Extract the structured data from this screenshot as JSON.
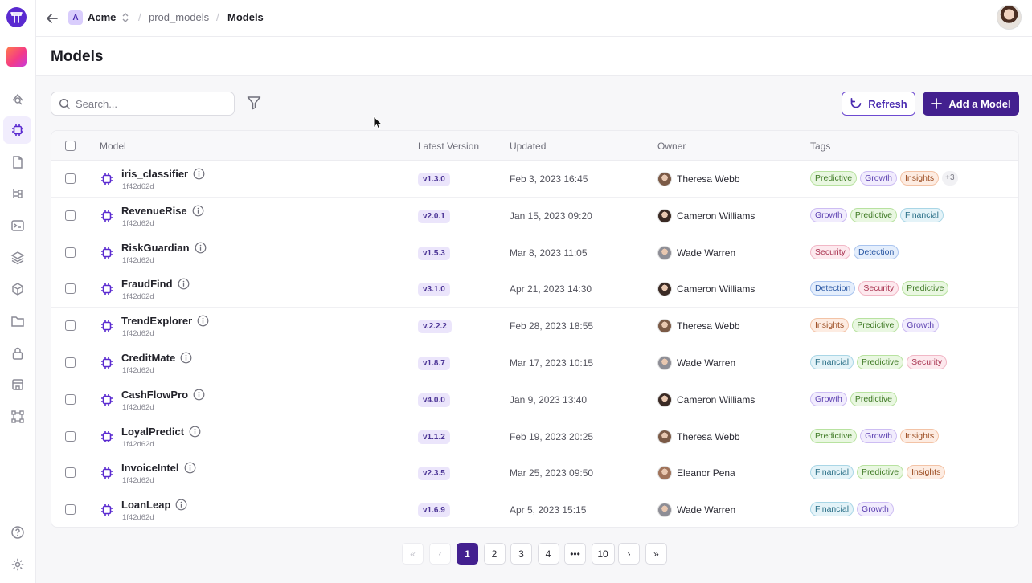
{
  "breadcrumb": {
    "workspace_initial": "A",
    "workspace": "Acme",
    "project": "prod_models",
    "current": "Models"
  },
  "page": {
    "title": "Models"
  },
  "toolbar": {
    "search_placeholder": "Search...",
    "refresh_label": "Refresh",
    "add_label": "Add a Model"
  },
  "table": {
    "headers": {
      "model": "Model",
      "version": "Latest Version",
      "updated": "Updated",
      "owner": "Owner",
      "tags": "Tags"
    },
    "rows": [
      {
        "name": "iris_classifier",
        "hash": "1f42d62d",
        "version": "v1.3.0",
        "updated": "Feb 3, 2023 16:45",
        "owner": "Theresa Webb",
        "tags": [
          "Predictive",
          "Growth",
          "Insights"
        ],
        "more": "+3"
      },
      {
        "name": "RevenueRise",
        "hash": "1f42d62d",
        "version": "v2.0.1",
        "updated": "Jan 15, 2023 09:20",
        "owner": "Cameron Williams",
        "tags": [
          "Growth",
          "Predictive",
          "Financial"
        ],
        "more": ""
      },
      {
        "name": "RiskGuardian",
        "hash": "1f42d62d",
        "version": "v1.5.3",
        "updated": "Mar 8, 2023 11:05",
        "owner": "Wade Warren",
        "tags": [
          "Security",
          "Detection"
        ],
        "more": ""
      },
      {
        "name": "FraudFind",
        "hash": "1f42d62d",
        "version": "v3.1.0",
        "updated": "Apr 21, 2023 14:30",
        "owner": "Cameron Williams",
        "tags": [
          "Detection",
          "Security",
          "Predictive"
        ],
        "more": ""
      },
      {
        "name": "TrendExplorer",
        "hash": "1f42d62d",
        "version": "v.2.2.2",
        "updated": "Feb 28, 2023 18:55",
        "owner": "Theresa Webb",
        "tags": [
          "Insights",
          "Predictive",
          "Growth"
        ],
        "more": ""
      },
      {
        "name": "CreditMate",
        "hash": "1f42d62d",
        "version": "v1.8.7",
        "updated": "Mar 17, 2023 10:15",
        "owner": "Wade Warren",
        "tags": [
          "Financial",
          "Predictive",
          "Security"
        ],
        "more": ""
      },
      {
        "name": "CashFlowPro",
        "hash": "1f42d62d",
        "version": "v4.0.0",
        "updated": "Jan 9, 2023 13:40",
        "owner": "Cameron Williams",
        "tags": [
          "Growth",
          "Predictive"
        ],
        "more": ""
      },
      {
        "name": "LoyalPredict",
        "hash": "1f42d62d",
        "version": "v1.1.2",
        "updated": "Feb 19, 2023 20:25",
        "owner": "Theresa Webb",
        "tags": [
          "Predictive",
          "Growth",
          "Insights"
        ],
        "more": ""
      },
      {
        "name": "InvoiceIntel",
        "hash": "1f42d62d",
        "version": "v2.3.5",
        "updated": "Mar 25, 2023 09:50",
        "owner": "Eleanor Pena",
        "tags": [
          "Financial",
          "Predictive",
          "Insights"
        ],
        "more": ""
      },
      {
        "name": "LoanLeap",
        "hash": "1f42d62d",
        "version": "v1.6.9",
        "updated": "Apr 5, 2023 15:15",
        "owner": "Wade Warren",
        "tags": [
          "Financial",
          "Growth"
        ],
        "more": ""
      }
    ]
  },
  "tag_colors": {
    "Predictive": {
      "bg": "#e9f7e1",
      "border": "#b8e2a0",
      "text": "#3f7a25"
    },
    "Growth": {
      "bg": "#f1ecfd",
      "border": "#cdbdf3",
      "text": "#5b3fb0"
    },
    "Insights": {
      "bg": "#fdece2",
      "border": "#f3c3a6",
      "text": "#9a4a1f"
    },
    "Financial": {
      "bg": "#e4f3f8",
      "border": "#a9d6e6",
      "text": "#2a6f87"
    },
    "Security": {
      "bg": "#fde9ee",
      "border": "#f1b7c6",
      "text": "#a8324f"
    },
    "Detection": {
      "bg": "#e4eefc",
      "border": "#a9c4ef",
      "text": "#2d5aa5"
    }
  },
  "owner_avatars": {
    "Theresa Webb": "#7b5a46",
    "Cameron Williams": "#3a2a24",
    "Wade Warren": "#8e8e96",
    "Eleanor Pena": "#a0735a"
  },
  "pagination": {
    "pages": [
      "1",
      "2",
      "3",
      "4",
      "•••",
      "10"
    ],
    "current": "1"
  },
  "colors": {
    "accent": "#43208f",
    "accent_light": "#ebe5fb"
  }
}
